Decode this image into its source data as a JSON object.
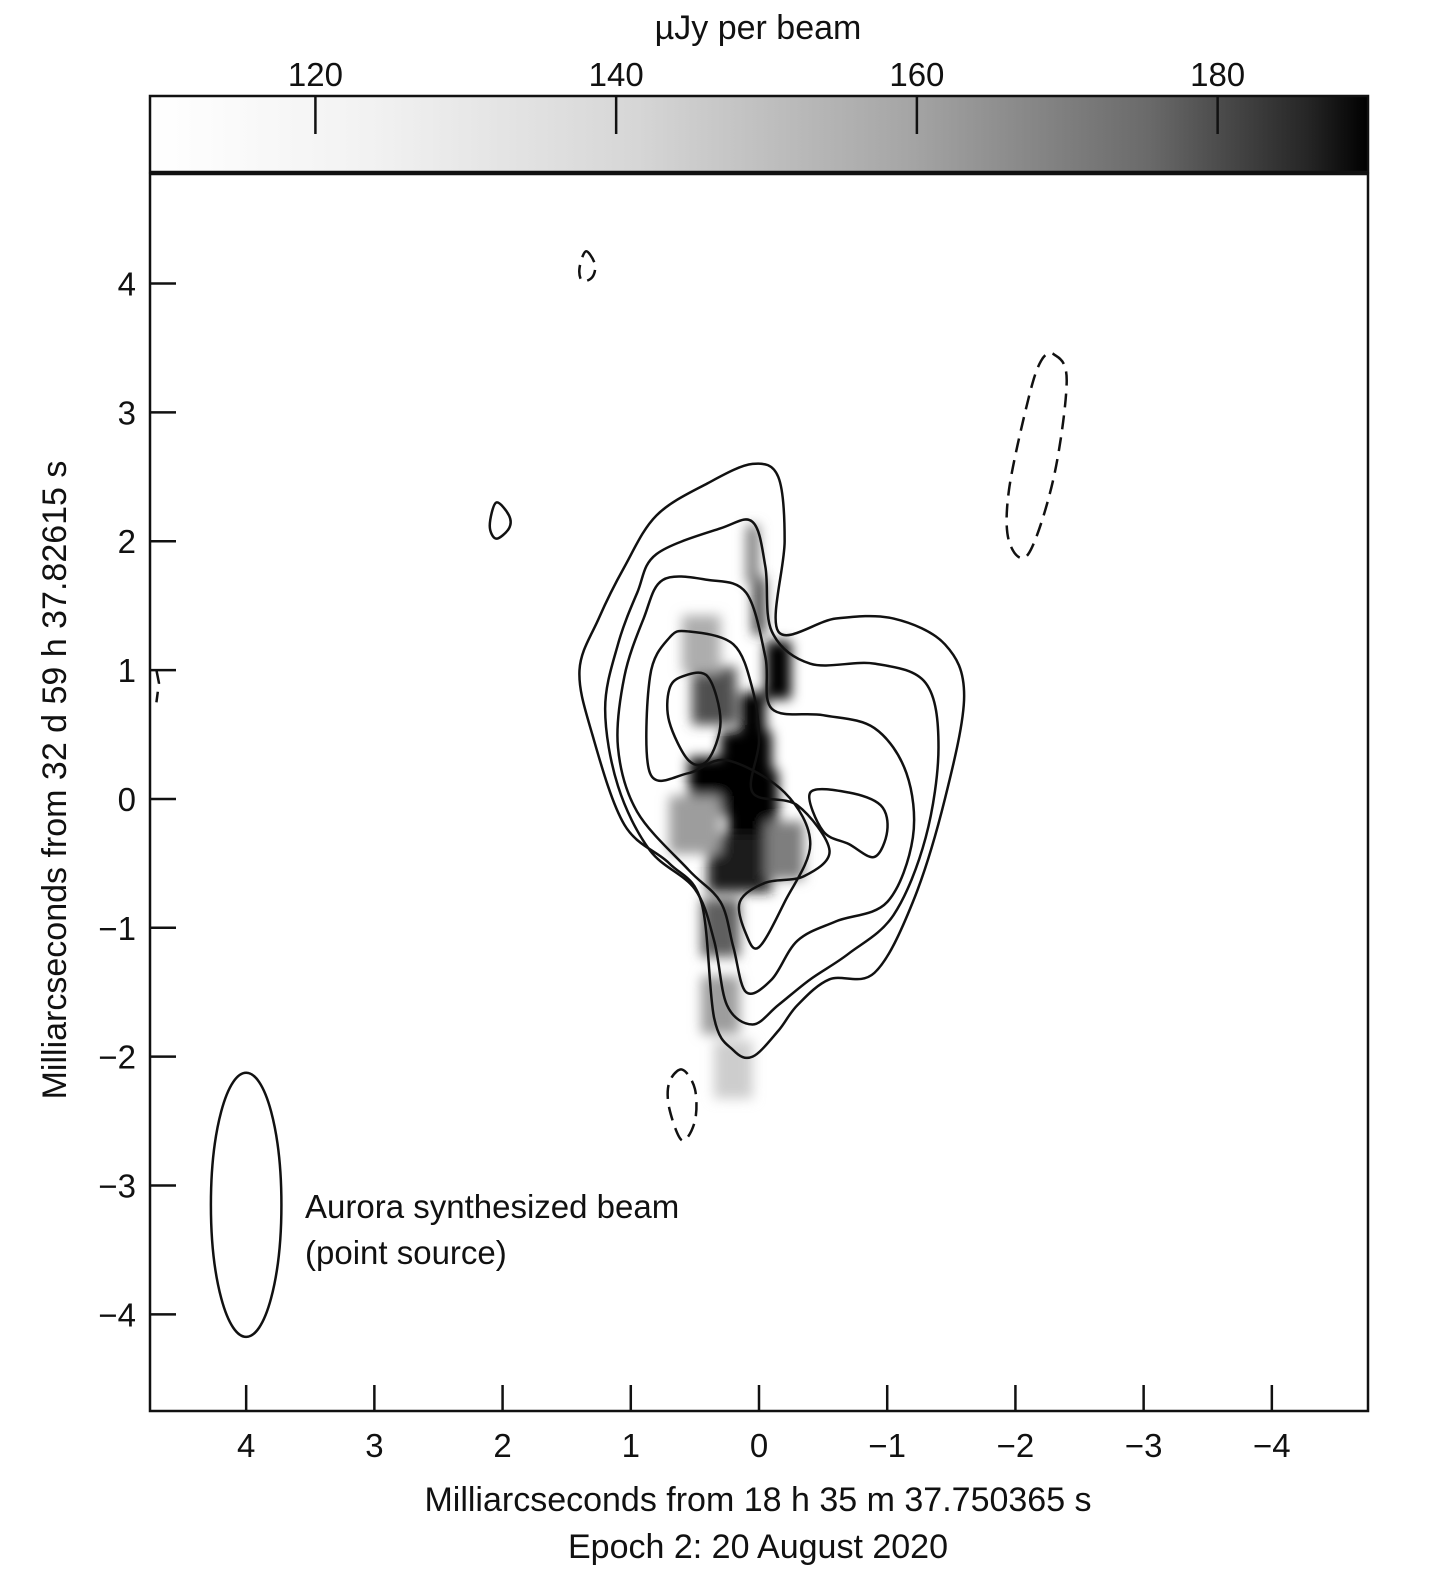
{
  "chart_data": {
    "type": "heatmap",
    "colorbar": {
      "label": "µJy per beam",
      "range": [
        109,
        190
      ],
      "ticks": [
        120,
        140,
        160,
        180
      ],
      "tick_labels": [
        "120",
        "140",
        "160",
        "180"
      ],
      "colormap": "greyscale (white = low, black = high)"
    },
    "x_axis": {
      "label": "Milliarcseconds from 18 h 35 m 37.750365 s",
      "range": [
        4.75,
        -4.75
      ],
      "ticks": [
        4,
        3,
        2,
        1,
        0,
        -1,
        -2,
        -3,
        -4
      ],
      "tick_labels": [
        "4",
        "3",
        "2",
        "1",
        "0",
        "−1",
        "−2",
        "−3",
        "−4"
      ]
    },
    "y_axis": {
      "label": "Milliarcseconds from 32 d 59 h 37.82615 s",
      "range": [
        -4.75,
        4.85
      ],
      "ticks": [
        4,
        3,
        2,
        1,
        0,
        -1,
        -2,
        -3,
        -4
      ],
      "tick_labels": [
        "4",
        "3",
        "2",
        "1",
        "0",
        "−1",
        "−2",
        "−3",
        "−4"
      ]
    },
    "subtitle": "Epoch 2: 20 August 2020",
    "annotation": {
      "line1": "Aurora synthesized beam",
      "line2": "(point source)"
    },
    "beam": {
      "center": [
        4.0,
        -3.15
      ],
      "major_axis": 2.05,
      "minor_axis": 0.55,
      "position_angle_deg": 0
    },
    "image_cells": [
      [
        -0.05,
        0.2,
        0.0,
        200
      ],
      [
        0.1,
        0.3,
        -0.1,
        200
      ],
      [
        0.3,
        0.5,
        0.1,
        200
      ],
      [
        -0.15,
        0.2,
        1.0,
        200
      ],
      [
        0.05,
        0.2,
        0.6,
        195
      ],
      [
        0.1,
        0.4,
        0.3,
        200
      ],
      [
        0.15,
        0.5,
        -0.5,
        180
      ],
      [
        0.0,
        0.1,
        1.5,
        170
      ],
      [
        0.05,
        0.1,
        1.9,
        150
      ],
      [
        0.3,
        0.3,
        -1.0,
        160
      ],
      [
        0.3,
        0.3,
        -1.6,
        140
      ],
      [
        0.2,
        0.3,
        -2.1,
        125
      ],
      [
        0.35,
        0.35,
        0.8,
        165
      ],
      [
        -0.2,
        0.3,
        -0.4,
        150
      ],
      [
        0.5,
        0.4,
        -0.2,
        140
      ],
      [
        0.45,
        0.3,
        1.2,
        135
      ]
    ],
    "contours": [
      {
        "style": "solid",
        "points": [
          [
            0.8,
            2.2
          ],
          [
            0.4,
            2.45
          ],
          [
            0.05,
            2.6
          ],
          [
            -0.15,
            2.5
          ],
          [
            -0.2,
            2.0
          ],
          [
            -0.15,
            1.3
          ],
          [
            -0.6,
            1.4
          ],
          [
            -1.05,
            1.4
          ],
          [
            -1.45,
            1.2
          ],
          [
            -1.6,
            0.8
          ],
          [
            -1.45,
            0.0
          ],
          [
            -1.2,
            -0.8
          ],
          [
            -0.9,
            -1.35
          ],
          [
            -0.55,
            -1.4
          ],
          [
            -0.3,
            -1.6
          ],
          [
            -0.15,
            -1.8
          ],
          [
            0.05,
            -2.0
          ],
          [
            0.2,
            -1.95
          ],
          [
            0.35,
            -1.7
          ],
          [
            0.45,
            -0.8
          ],
          [
            0.7,
            -0.5
          ],
          [
            1.05,
            -0.2
          ],
          [
            1.3,
            0.5
          ],
          [
            1.4,
            1.0
          ],
          [
            1.25,
            1.4
          ],
          [
            1.05,
            1.8
          ]
        ]
      },
      {
        "style": "solid",
        "points": [
          [
            0.8,
            1.9
          ],
          [
            0.3,
            2.1
          ],
          [
            0.05,
            2.15
          ],
          [
            -0.05,
            1.8
          ],
          [
            -0.1,
            1.3
          ],
          [
            -0.4,
            1.05
          ],
          [
            -0.9,
            1.05
          ],
          [
            -1.3,
            0.9
          ],
          [
            -1.4,
            0.4
          ],
          [
            -1.3,
            -0.3
          ],
          [
            -1.05,
            -0.9
          ],
          [
            -0.7,
            -1.2
          ],
          [
            -0.4,
            -1.4
          ],
          [
            -0.15,
            -1.6
          ],
          [
            0.05,
            -1.75
          ],
          [
            0.25,
            -1.6
          ],
          [
            0.35,
            -1.1
          ],
          [
            0.5,
            -0.7
          ],
          [
            0.85,
            -0.4
          ],
          [
            1.1,
            0.1
          ],
          [
            1.2,
            0.7
          ],
          [
            1.1,
            1.2
          ],
          [
            0.95,
            1.6
          ]
        ]
      },
      {
        "style": "solid",
        "points": [
          [
            0.75,
            1.7
          ],
          [
            0.4,
            1.7
          ],
          [
            0.1,
            1.6
          ],
          [
            -0.05,
            1.1
          ],
          [
            -0.1,
            0.7
          ],
          [
            -0.5,
            0.65
          ],
          [
            -0.9,
            0.55
          ],
          [
            -1.15,
            0.2
          ],
          [
            -1.2,
            -0.3
          ],
          [
            -1.0,
            -0.8
          ],
          [
            -0.6,
            -0.95
          ],
          [
            -0.3,
            -1.1
          ],
          [
            -0.1,
            -1.4
          ],
          [
            0.1,
            -1.5
          ],
          [
            0.2,
            -1.15
          ],
          [
            0.3,
            -0.8
          ],
          [
            0.55,
            -0.55
          ],
          [
            0.95,
            -0.1
          ],
          [
            1.1,
            0.4
          ],
          [
            1.05,
            0.95
          ],
          [
            0.9,
            1.4
          ]
        ]
      },
      {
        "style": "solid",
        "points": [
          [
            0.55,
            1.3
          ],
          [
            0.2,
            1.2
          ],
          [
            0.05,
            0.85
          ],
          [
            0.0,
            0.45
          ],
          [
            0.05,
            0.05
          ],
          [
            -0.3,
            -0.05
          ],
          [
            -0.55,
            -0.4
          ],
          [
            -0.35,
            -0.6
          ],
          [
            -0.05,
            -0.65
          ],
          [
            0.15,
            -0.8
          ],
          [
            0.1,
            -1.05
          ],
          [
            0.0,
            -1.15
          ],
          [
            -0.2,
            -0.8
          ],
          [
            -0.4,
            -0.35
          ],
          [
            -0.2,
            0.05
          ],
          [
            0.25,
            0.3
          ],
          [
            0.55,
            0.2
          ],
          [
            0.85,
            0.2
          ],
          [
            0.85,
            0.95
          ],
          [
            0.7,
            1.25
          ]
        ]
      },
      {
        "style": "solid",
        "points": [
          [
            0.6,
            0.95
          ],
          [
            0.4,
            0.95
          ],
          [
            0.3,
            0.6
          ],
          [
            0.4,
            0.3
          ],
          [
            0.55,
            0.3
          ],
          [
            0.7,
            0.6
          ],
          [
            0.7,
            0.85
          ]
        ]
      },
      {
        "style": "solid",
        "points": [
          [
            -0.4,
            0.05
          ],
          [
            -0.7,
            0.05
          ],
          [
            -0.95,
            -0.05
          ],
          [
            -1.0,
            -0.25
          ],
          [
            -0.9,
            -0.45
          ],
          [
            -0.7,
            -0.35
          ],
          [
            -0.5,
            -0.25
          ]
        ]
      },
      {
        "style": "solid",
        "points": [
          [
            2.05,
            2.3
          ],
          [
            1.95,
            2.2
          ],
          [
            1.95,
            2.1
          ],
          [
            2.05,
            2.02
          ],
          [
            2.1,
            2.12
          ]
        ]
      },
      {
        "style": "dashed",
        "points": [
          [
            1.35,
            4.25
          ],
          [
            1.28,
            4.15
          ],
          [
            1.3,
            4.05
          ],
          [
            1.38,
            4.02
          ],
          [
            1.4,
            4.12
          ]
        ]
      },
      {
        "style": "dashed",
        "points": [
          [
            -2.3,
            3.45
          ],
          [
            -2.4,
            3.25
          ],
          [
            -2.3,
            2.5
          ],
          [
            -2.1,
            1.9
          ],
          [
            -1.95,
            2.0
          ],
          [
            -1.95,
            2.4
          ],
          [
            -2.1,
            3.1
          ],
          [
            -2.2,
            3.4
          ]
        ]
      },
      {
        "style": "dashed",
        "points": [
          [
            0.6,
            -2.1
          ],
          [
            0.7,
            -2.2
          ],
          [
            0.7,
            -2.4
          ],
          [
            0.6,
            -2.65
          ],
          [
            0.5,
            -2.5
          ],
          [
            0.5,
            -2.25
          ]
        ]
      },
      {
        "style": "dashed",
        "points": [
          [
            4.7,
            1.0
          ],
          [
            4.68,
            0.9
          ],
          [
            4.7,
            0.75
          ]
        ]
      }
    ]
  }
}
